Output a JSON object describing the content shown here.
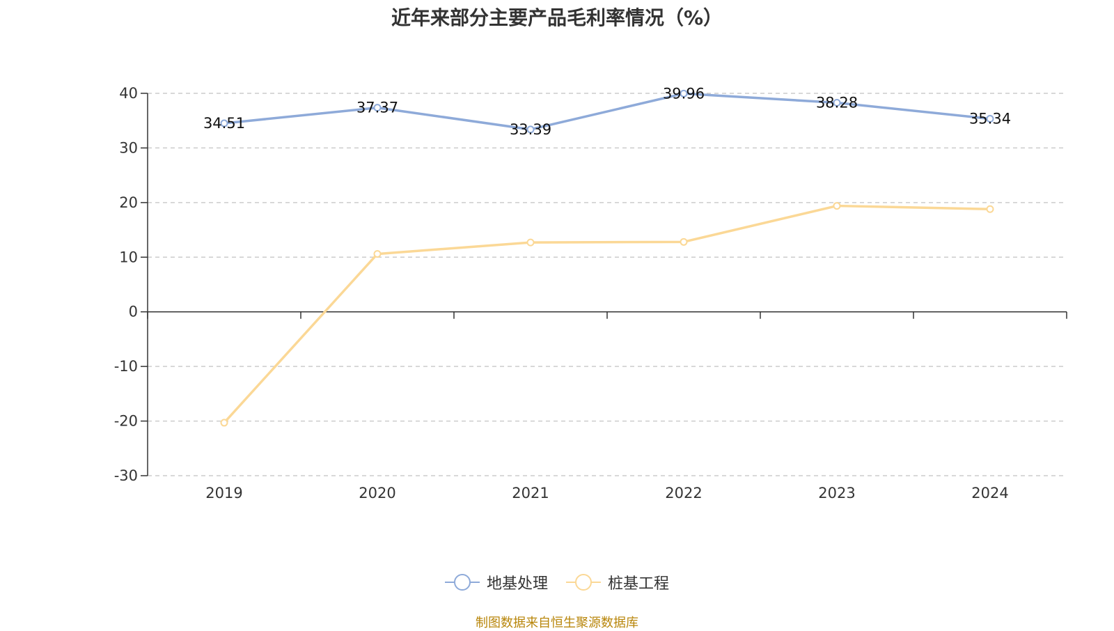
{
  "chart_data": {
    "type": "line",
    "title": "近年来部分主要产品毛利率情况（%）",
    "categories": [
      "2019",
      "2020",
      "2021",
      "2022",
      "2023",
      "2024"
    ],
    "ylim": [
      -30,
      40
    ],
    "yticks": [
      40,
      30,
      20,
      10,
      0,
      -10,
      -20,
      -30
    ],
    "grid": true,
    "legend_position": "bottom",
    "series": [
      {
        "name": "地基处理",
        "color": "#8eaad9",
        "values": [
          34.51,
          37.37,
          33.39,
          39.96,
          38.28,
          35.34
        ],
        "show_labels": true
      },
      {
        "name": "桩基工程",
        "color": "#fbd896",
        "values": [
          -20.3,
          10.6,
          12.7,
          12.8,
          19.4,
          18.8
        ],
        "show_labels": false
      }
    ]
  },
  "source_note": "制图数据来自恒生聚源数据库"
}
